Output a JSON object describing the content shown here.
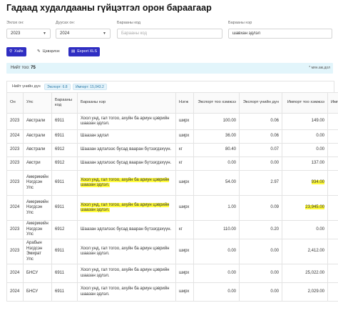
{
  "page": {
    "title": "Гадаад худалдааны гүйцэтгэл орон бараагаар"
  },
  "filters": {
    "start_year": {
      "label": "Эхлэх он:",
      "value": "2023"
    },
    "end_year": {
      "label": "Дуусах он:",
      "value": "2024"
    },
    "product_code": {
      "label": "Барааны код",
      "placeholder": "Барааны код"
    },
    "product_name": {
      "label": "Барааны нэр",
      "value": "шавхан эдлэл"
    }
  },
  "buttons": {
    "search": {
      "label": "Хайх",
      "icon": "search-icon"
    },
    "clear": {
      "label": "Цэвэрлэх",
      "icon": "broom-icon"
    },
    "export": {
      "label": "Export XLS",
      "icon": "file-icon"
    }
  },
  "info": {
    "total_label": "Нийт тоо:",
    "total_value": "75",
    "unit_note": "* мян.ам.дол"
  },
  "summary": {
    "label": "Нийт үнийн дүн",
    "export_badge": "Экспорт: 6.8",
    "import_badge": "Импорт: 15,043.2"
  },
  "table": {
    "columns": [
      "Он",
      "Улс",
      "Барааны код",
      "Барааны нэр",
      "Нэгж",
      "Экспорт тоо хэмжээ",
      "Экспорт үнийн дүн",
      "Импорт тоо хэмжээ",
      "Импор"
    ],
    "rows": [
      {
        "year": "2023",
        "country": "Австрали",
        "code": "6911",
        "name": "Хоол унд, гал тогоо, ахуйн ба ариун цэврийн шаазан эдлэл.",
        "unit": "ширх",
        "exp_qty": "100.00",
        "exp_val": "0.06",
        "imp_qty": "149.00",
        "highlight": false
      },
      {
        "year": "2024",
        "country": "Австрали",
        "code": "6911",
        "name": "Шаазан эдлэл",
        "unit": "ширх",
        "exp_qty": "36.00",
        "exp_val": "0.06",
        "imp_qty": "0.00",
        "highlight": false
      },
      {
        "year": "2023",
        "country": "Австрали",
        "code": "6912",
        "name": "Шаазан эдлэлээс бусад вааран бүтээгдэхүүн.",
        "unit": "кг",
        "exp_qty": "80.40",
        "exp_val": "0.07",
        "imp_qty": "0.00",
        "highlight": false
      },
      {
        "year": "2023",
        "country": "Австри",
        "code": "6912",
        "name": "Шаазан эдлэлээс бусад вааран бүтээгдэхүүн.",
        "unit": "кг",
        "exp_qty": "0.00",
        "exp_val": "0.00",
        "imp_qty": "137.00",
        "highlight": false
      },
      {
        "year": "2023",
        "country": "Америкийн Нэгдсэн Улс",
        "code": "6911",
        "name": "Хоол унд, гал тогоо, ахуйн ба ариун цэврийн шаазан эдлэл.",
        "unit": "ширх",
        "exp_qty": "54.00",
        "exp_val": "2.97",
        "imp_qty": "934.00",
        "highlight": true
      },
      {
        "year": "2024",
        "country": "Америкийн Нэгдсэн Улс",
        "code": "6911",
        "name": "Хоол унд, гал тогоо, ахуйн ба ариун цэврийн шаазан эдлэл.",
        "unit": "ширх",
        "exp_qty": "1.00",
        "exp_val": "0.09",
        "imp_qty": "23,945.00",
        "highlight": true
      },
      {
        "year": "2023",
        "country": "Америкийн Нэгдсэн Улс",
        "code": "6912",
        "name": "Шаазан эдлэлээс бусад вааран бүтээгдэхүүн.",
        "unit": "кг",
        "exp_qty": "110.00",
        "exp_val": "0.20",
        "imp_qty": "0.00",
        "highlight": false
      },
      {
        "year": "2023",
        "country": "Арабын Нэгдсэн Эмират Улс",
        "code": "6911",
        "name": "Хоол унд, гал тогоо, ахуйн ба ариун цэврийн шаазан эдлэл.",
        "unit": "ширх",
        "exp_qty": "0.00",
        "exp_val": "0.00",
        "imp_qty": "2,412.00",
        "highlight": false
      },
      {
        "year": "2024",
        "country": "БНСУ",
        "code": "6911",
        "name": "Хоол унд, гал тогоо, ахуйн ба ариун цэврийн шаазан эдлэл.",
        "unit": "ширх",
        "exp_qty": "0.00",
        "exp_val": "0.00",
        "imp_qty": "25,022.00",
        "highlight": false
      },
      {
        "year": "2024",
        "country": "БНСУ",
        "code": "6911",
        "name": "Хоол унд, гал тогоо, ахуйн ба ариун цэврийн шаазан эдлэл.",
        "unit": "ширх",
        "exp_qty": "0.00",
        "exp_val": "0.00",
        "imp_qty": "2,029.00",
        "highlight": false
      }
    ]
  },
  "colors": {
    "primary": "#2f2ec2",
    "info_bg": "#e2f5fb",
    "highlight": "#fffb3a"
  }
}
